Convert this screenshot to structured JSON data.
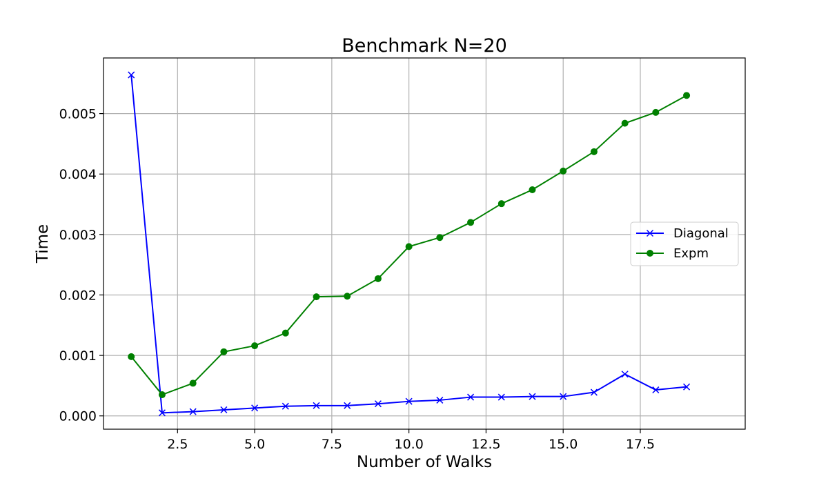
{
  "chart_data": {
    "type": "line",
    "title": "Benchmark N=20",
    "xlabel": "Number of Walks",
    "ylabel": "Time",
    "xlim": [
      0.1,
      20.9
    ],
    "ylim": [
      -0.00022,
      0.00592
    ],
    "xticks": [
      2.5,
      5.0,
      7.5,
      10.0,
      12.5,
      15.0,
      17.5
    ],
    "xtick_labels": [
      "2.5",
      "5.0",
      "7.5",
      "10.0",
      "12.5",
      "15.0",
      "17.5"
    ],
    "yticks": [
      0.0,
      0.001,
      0.002,
      0.003,
      0.004,
      0.005
    ],
    "ytick_labels": [
      "0.000",
      "0.001",
      "0.002",
      "0.003",
      "0.004",
      "0.005"
    ],
    "grid": true,
    "legend_position": "center-right",
    "x": [
      1,
      2,
      3,
      4,
      5,
      6,
      7,
      8,
      9,
      10,
      11,
      12,
      13,
      14,
      15,
      16,
      17,
      18,
      19
    ],
    "series": [
      {
        "name": "Diagonal",
        "color": "#0000ff",
        "marker": "x",
        "values": [
          0.00564,
          5e-05,
          7e-05,
          0.0001,
          0.00013,
          0.00016,
          0.00017,
          0.00017,
          0.0002,
          0.00024,
          0.00026,
          0.00031,
          0.00031,
          0.00032,
          0.00032,
          0.00039,
          0.00069,
          0.00043,
          0.00048
        ]
      },
      {
        "name": "Expm",
        "color": "#008000",
        "marker": "o",
        "values": [
          0.00098,
          0.00035,
          0.00054,
          0.00106,
          0.00116,
          0.00137,
          0.00197,
          0.00198,
          0.00227,
          0.0028,
          0.00295,
          0.0032,
          0.00351,
          0.00374,
          0.00405,
          0.00437,
          0.00484,
          0.00502,
          0.0053
        ]
      }
    ]
  }
}
